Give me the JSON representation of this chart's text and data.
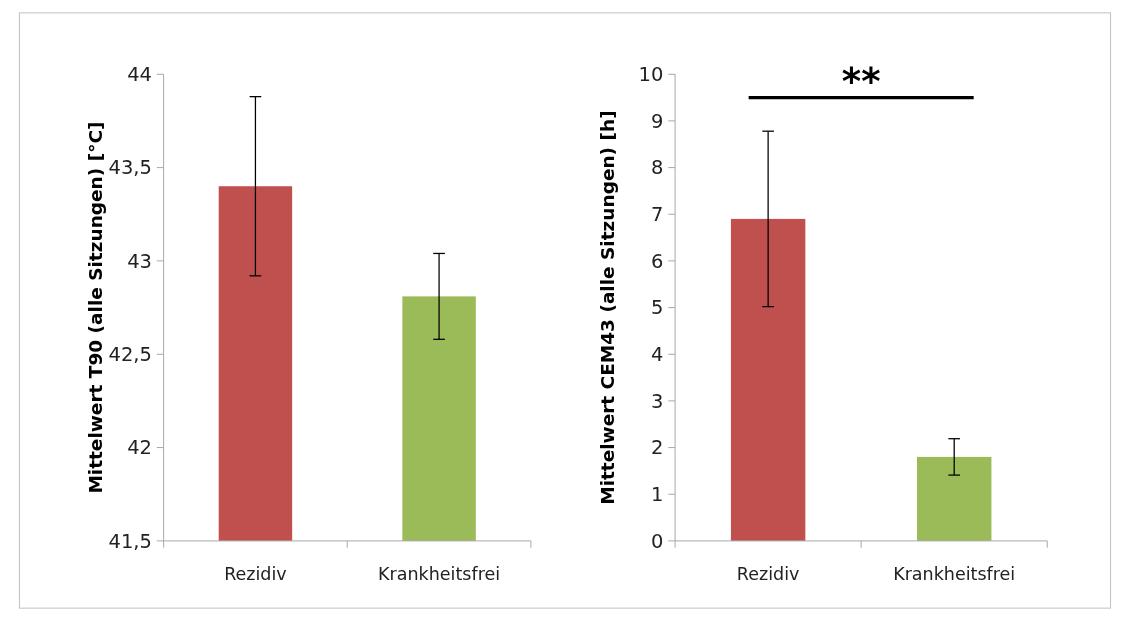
{
  "chart_data": [
    {
      "type": "bar",
      "ylabel": "Mittelwert T90 (alle Sitzungen) [°C]",
      "categories": [
        "Rezidiv",
        "Krankheitsfrei"
      ],
      "values": [
        43.4,
        42.81
      ],
      "colors": [
        "#c0504d",
        "#9bbb59"
      ],
      "errors": [
        0.48,
        0.23
      ],
      "ylim": [
        41.5,
        44
      ],
      "yticks": [
        {
          "value": 41.5,
          "label": "41,5"
        },
        42,
        {
          "value": 42.5,
          "label": "42,5"
        },
        43,
        {
          "value": 43.5,
          "label": "43,5"
        },
        44
      ]
    },
    {
      "type": "bar",
      "ylabel": "Mittelwert CEM43 (alle Sitzungen) [h]",
      "categories": [
        "Rezidiv",
        "Krankheitsfrei"
      ],
      "values": [
        6.9,
        1.8
      ],
      "colors": [
        "#c0504d",
        "#9bbb59"
      ],
      "errors": [
        1.88,
        0.39
      ],
      "ylim": [
        0,
        10
      ],
      "yticks": [
        0,
        1,
        2,
        3,
        4,
        5,
        6,
        7,
        8,
        9,
        10
      ],
      "annotations": [
        "**"
      ]
    }
  ]
}
